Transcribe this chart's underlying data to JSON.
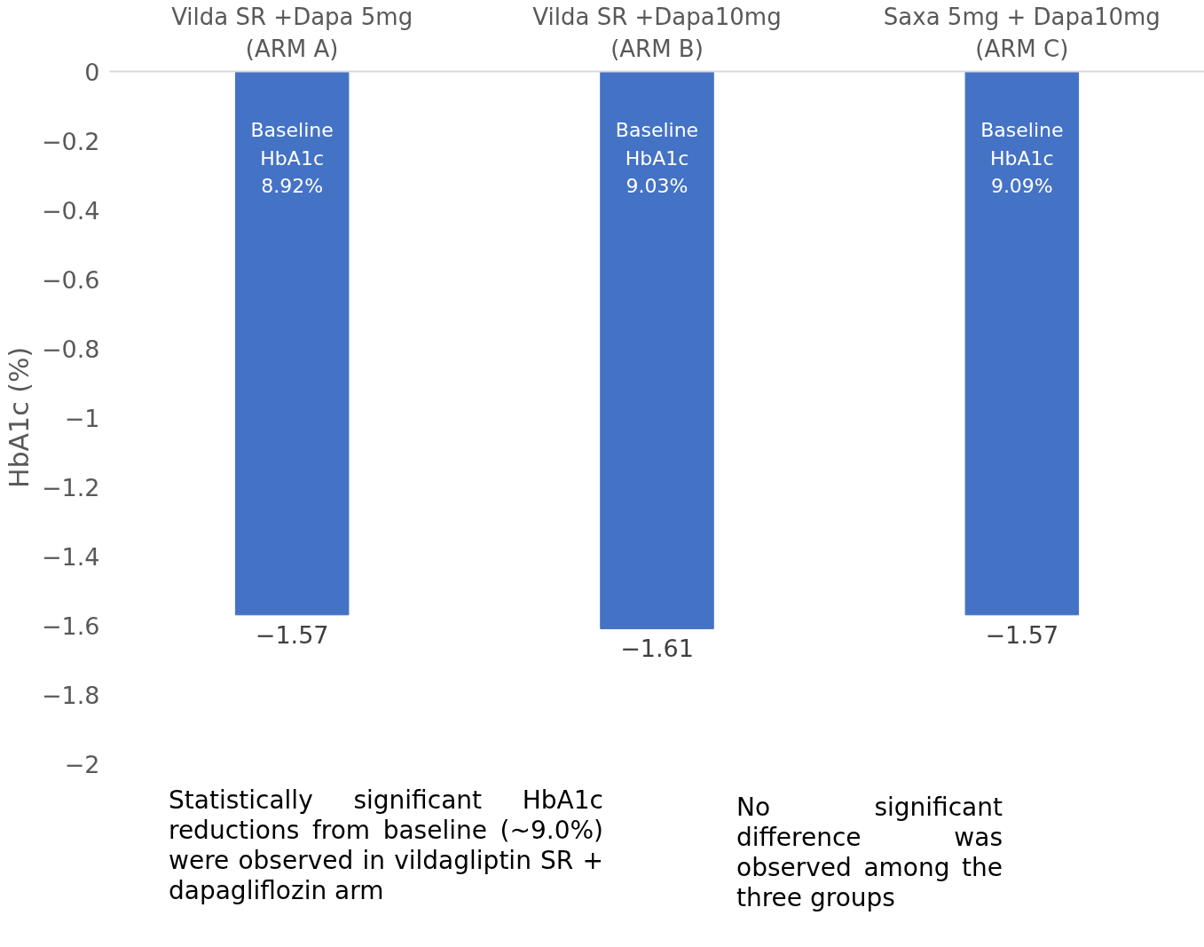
{
  "chart_data": {
    "type": "bar",
    "categories": [
      "Vilda SR +Dapa 5mg\n(ARM A)",
      "Vilda SR +Dapa10mg\n(ARM B)",
      "Saxa 5mg + Dapa10mg\n(ARM C)"
    ],
    "values": [
      -1.57,
      -1.61,
      -1.57
    ],
    "color": "#4472c4",
    "ylabel": "HbA1c (%)",
    "ylim": [
      -2,
      0
    ],
    "yticks": [
      0,
      -0.2,
      -0.4,
      -0.6,
      -0.8,
      -1,
      -1.2,
      -1.4,
      -1.6,
      -1.8,
      -2
    ],
    "data_labels": true,
    "grid": false,
    "annotations": [
      "Baseline\nHbA1c\n8.92%",
      "Baseline\nHbA1c\n9.03%",
      "Baseline\nHbA1c\n9.09%",
      "Statistically significant HbA1c reductions from baseline (~9.0%) were observed in vildagliptin SR + dapagliflozin arm",
      "No significant difference was observed among the three groups"
    ]
  }
}
